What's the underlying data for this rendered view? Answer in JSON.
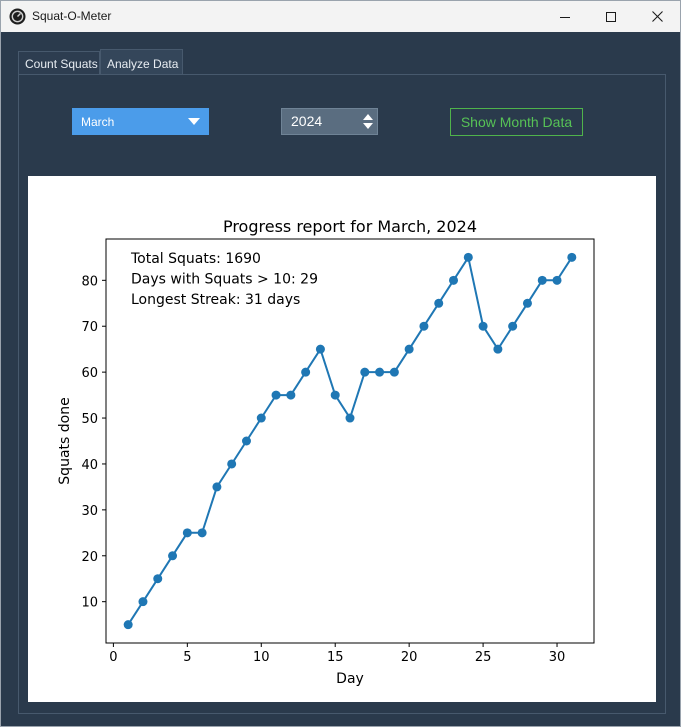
{
  "window": {
    "title": "Squat-O-Meter",
    "controls": [
      "minimize-icon",
      "maximize-icon",
      "close-icon"
    ]
  },
  "tabs": [
    {
      "label": "Count Squats",
      "selected": false
    },
    {
      "label": "Analyze Data",
      "selected": true
    }
  ],
  "controls": {
    "month_select": {
      "value": "March"
    },
    "year_spin": {
      "value": "2024"
    },
    "show_button": {
      "label": "Show Month Data"
    }
  },
  "colors": {
    "background": "#2a3a4c",
    "combo": "#4b9cea",
    "button_accent": "#57c256",
    "series": "#1f77b4"
  },
  "chart_data": {
    "type": "line",
    "title": "Progress report for March, 2024",
    "xlabel": "Day",
    "ylabel": "Squats done",
    "xlim": [
      -0.5,
      32.5
    ],
    "ylim": [
      1,
      89
    ],
    "x_ticks": [
      0,
      5,
      10,
      15,
      20,
      25,
      30
    ],
    "y_ticks": [
      10,
      20,
      30,
      40,
      50,
      60,
      70,
      80
    ],
    "grid": false,
    "markers": true,
    "annotations": [
      "Total Squats: 1690",
      "Days with Squats > 10: 29",
      "Longest Streak: 31 days"
    ],
    "x": [
      1,
      2,
      3,
      4,
      5,
      6,
      7,
      8,
      9,
      10,
      11,
      12,
      13,
      14,
      15,
      16,
      17,
      18,
      19,
      20,
      21,
      22,
      23,
      24,
      25,
      26,
      27,
      28,
      29,
      30,
      31
    ],
    "y": [
      5,
      10,
      15,
      20,
      25,
      25,
      35,
      40,
      45,
      50,
      55,
      55,
      60,
      65,
      55,
      50,
      60,
      60,
      60,
      65,
      70,
      75,
      80,
      85,
      70,
      65,
      70,
      75,
      80,
      80,
      85
    ]
  }
}
